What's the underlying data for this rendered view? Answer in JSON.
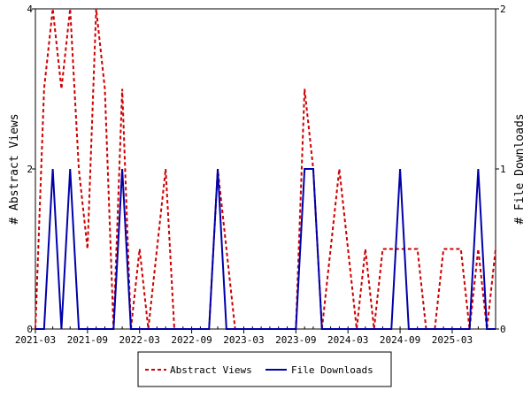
{
  "chart_data": {
    "type": "line",
    "x_labels": [
      "2021-03",
      "2021-09",
      "2022-03",
      "2022-09",
      "2023-03",
      "2023-09",
      "2024-03",
      "2024-09",
      "2025-03"
    ],
    "y_left_label": "# Abstract Views",
    "y_right_label": "# File Downloads",
    "y_left_ticks": [
      "0",
      "2",
      "4"
    ],
    "y_right_ticks": [
      "0",
      "1",
      "2"
    ],
    "y_left_range": [
      0,
      4
    ],
    "y_right_range": [
      0,
      2
    ],
    "grid": false,
    "legend_position": "bottom",
    "series": [
      {
        "name": "Abstract Views",
        "axis": "left",
        "color": "#cc0000",
        "style": "dashed",
        "points": [
          [
            0,
            0
          ],
          [
            1,
            3
          ],
          [
            2,
            4
          ],
          [
            3,
            3
          ],
          [
            4,
            4
          ],
          [
            5,
            2
          ],
          [
            6,
            1
          ],
          [
            7,
            4
          ],
          [
            8,
            3
          ],
          [
            9,
            0
          ],
          [
            10,
            3
          ],
          [
            11,
            0
          ],
          [
            12,
            1
          ],
          [
            13,
            0
          ],
          [
            14,
            1
          ],
          [
            15,
            2
          ],
          [
            16,
            0
          ],
          [
            17,
            0
          ],
          [
            18,
            0
          ],
          [
            19,
            0
          ],
          [
            20,
            0
          ],
          [
            21,
            2
          ],
          [
            22,
            1
          ],
          [
            23,
            0
          ],
          [
            24,
            0
          ],
          [
            25,
            0
          ],
          [
            26,
            0
          ],
          [
            27,
            0
          ],
          [
            28,
            0
          ],
          [
            29,
            0
          ],
          [
            30,
            0
          ],
          [
            31,
            3
          ],
          [
            32,
            2
          ],
          [
            33,
            0
          ],
          [
            34,
            1
          ],
          [
            35,
            2
          ],
          [
            36,
            1
          ],
          [
            37,
            0
          ],
          [
            38,
            1
          ],
          [
            39,
            0
          ],
          [
            40,
            1
          ],
          [
            41,
            1
          ],
          [
            42,
            1
          ],
          [
            43,
            1
          ],
          [
            44,
            1
          ],
          [
            45,
            0
          ],
          [
            46,
            0
          ],
          [
            47,
            1
          ],
          [
            48,
            1
          ],
          [
            49,
            1
          ],
          [
            50,
            0
          ],
          [
            51,
            1
          ],
          [
            52,
            0
          ],
          [
            53,
            1
          ]
        ]
      },
      {
        "name": "File Downloads",
        "axis": "right",
        "color": "#0000aa",
        "style": "solid",
        "points": [
          [
            0,
            0
          ],
          [
            1,
            0
          ],
          [
            2,
            1
          ],
          [
            3,
            0
          ],
          [
            4,
            1
          ],
          [
            5,
            0
          ],
          [
            6,
            0
          ],
          [
            7,
            0
          ],
          [
            8,
            0
          ],
          [
            9,
            0
          ],
          [
            10,
            1
          ],
          [
            11,
            0
          ],
          [
            12,
            0
          ],
          [
            13,
            0
          ],
          [
            14,
            0
          ],
          [
            15,
            0
          ],
          [
            16,
            0
          ],
          [
            17,
            0
          ],
          [
            18,
            0
          ],
          [
            19,
            0
          ],
          [
            20,
            0
          ],
          [
            21,
            1
          ],
          [
            22,
            0
          ],
          [
            23,
            0
          ],
          [
            24,
            0
          ],
          [
            25,
            0
          ],
          [
            26,
            0
          ],
          [
            27,
            0
          ],
          [
            28,
            0
          ],
          [
            29,
            0
          ],
          [
            30,
            0
          ],
          [
            31,
            1
          ],
          [
            32,
            1
          ],
          [
            33,
            0
          ],
          [
            34,
            0
          ],
          [
            35,
            0
          ],
          [
            36,
            0
          ],
          [
            37,
            0
          ],
          [
            38,
            0
          ],
          [
            39,
            0
          ],
          [
            40,
            0
          ],
          [
            41,
            0
          ],
          [
            42,
            1
          ],
          [
            43,
            0
          ],
          [
            44,
            0
          ],
          [
            45,
            0
          ],
          [
            46,
            0
          ],
          [
            47,
            0
          ],
          [
            48,
            0
          ],
          [
            49,
            0
          ],
          [
            50,
            0
          ],
          [
            51,
            1
          ],
          [
            52,
            0
          ],
          [
            53,
            0
          ]
        ]
      }
    ]
  }
}
